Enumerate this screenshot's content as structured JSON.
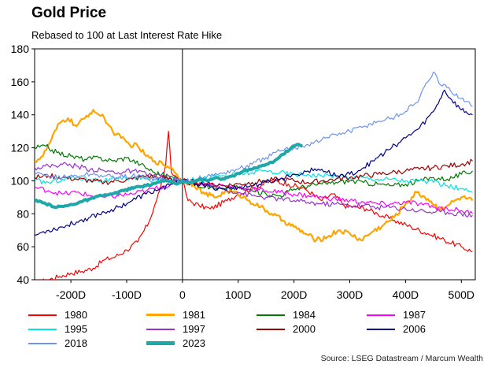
{
  "title": "Gold Price",
  "subtitle": "Rebased to 100 at Last Interest Rate Hike",
  "source": "Source: LSEG Datastream / Marcum Wealth",
  "chart_data": {
    "type": "line",
    "title": "Gold Price",
    "subtitle": "Rebased to 100 at Last Interest Rate Hike",
    "xlabel": "",
    "ylabel": "",
    "xlim": [
      -265,
      525
    ],
    "ylim": [
      40,
      180
    ],
    "yticks": [
      40,
      60,
      80,
      100,
      120,
      140,
      160,
      180
    ],
    "xticks": [
      -200,
      -100,
      0,
      100,
      200,
      300,
      400,
      500
    ],
    "xtick_labels": [
      "-200D",
      "-100D",
      "0",
      "100D",
      "200D",
      "300D",
      "400D",
      "500D"
    ],
    "vline_x": 0,
    "legend_position": "bottom",
    "series": [
      {
        "name": "1980",
        "color": "#ff0000",
        "width": 1.2,
        "x": [
          -265,
          -240,
          -220,
          -200,
          -180,
          -160,
          -140,
          -120,
          -100,
          -80,
          -60,
          -50,
          -40,
          -30,
          -25,
          -20,
          -10,
          0,
          10,
          30,
          50,
          80,
          100,
          130,
          160,
          190,
          220,
          250,
          270,
          290,
          310,
          330,
          350,
          380,
          410,
          440,
          470,
          500,
          520
        ],
        "y": [
          38,
          40,
          42,
          44,
          45,
          47,
          52,
          54,
          58,
          63,
          75,
          85,
          95,
          110,
          130,
          105,
          102,
          100,
          88,
          85,
          83,
          88,
          92,
          96,
          100,
          98,
          95,
          88,
          92,
          85,
          84,
          83,
          80,
          76,
          72,
          68,
          64,
          60,
          57
        ]
      },
      {
        "name": "1981",
        "color": "#ffa500",
        "width": 2.2,
        "x": [
          -265,
          -250,
          -235,
          -220,
          -205,
          -190,
          -175,
          -160,
          -150,
          -140,
          -125,
          -110,
          -95,
          -80,
          -65,
          -50,
          -35,
          -20,
          -10,
          0,
          20,
          40,
          60,
          80,
          100,
          120,
          140,
          160,
          180,
          200,
          220,
          240,
          260,
          280,
          300,
          320,
          340,
          360,
          380,
          400,
          420,
          440,
          460,
          480,
          500,
          520
        ],
        "y": [
          112,
          115,
          125,
          135,
          138,
          133,
          138,
          143,
          140,
          138,
          130,
          126,
          122,
          121,
          115,
          112,
          110,
          108,
          104,
          100,
          98,
          92,
          90,
          94,
          92,
          88,
          84,
          80,
          76,
          72,
          68,
          64,
          66,
          70,
          68,
          64,
          69,
          73,
          78,
          86,
          93,
          89,
          83,
          86,
          90,
          88
        ]
      },
      {
        "name": "1984",
        "color": "#007a00",
        "width": 1.2,
        "x": [
          -265,
          -245,
          -225,
          -200,
          -175,
          -150,
          -125,
          -100,
          -75,
          -50,
          -25,
          0,
          25,
          50,
          75,
          100,
          125,
          150,
          175,
          200,
          225,
          250,
          275,
          300,
          325,
          350,
          375,
          400,
          425,
          450,
          475,
          500,
          520
        ],
        "y": [
          120,
          121,
          117,
          115,
          113,
          114,
          112,
          114,
          110,
          105,
          103,
          100,
          98,
          96,
          95,
          96,
          94,
          92,
          91,
          95,
          97,
          98,
          99,
          100,
          99,
          98,
          97,
          98,
          100,
          102,
          101,
          104,
          106
        ]
      },
      {
        "name": "1987",
        "color": "#ff00ff",
        "width": 1.2,
        "x": [
          -265,
          -240,
          -215,
          -190,
          -165,
          -140,
          -115,
          -90,
          -65,
          -40,
          -20,
          0,
          25,
          50,
          75,
          100,
          125,
          150,
          175,
          200,
          225,
          250,
          275,
          300,
          325,
          350,
          375,
          400,
          425,
          450,
          475,
          500,
          520
        ],
        "y": [
          96,
          94,
          92,
          93,
          91,
          90,
          91,
          92,
          94,
          96,
          98,
          100,
          99,
          98,
          97,
          96,
          95,
          94,
          93,
          92,
          91,
          90,
          89,
          88,
          87,
          86,
          86,
          87,
          86,
          84,
          83,
          82,
          80
        ]
      },
      {
        "name": "1995",
        "color": "#00e5e5",
        "width": 1.2,
        "x": [
          -265,
          -240,
          -215,
          -190,
          -165,
          -140,
          -115,
          -90,
          -65,
          -40,
          -20,
          0,
          25,
          50,
          75,
          100,
          125,
          150,
          175,
          200,
          225,
          250,
          275,
          300,
          325,
          350,
          375,
          400,
          425,
          450,
          475,
          500,
          520
        ],
        "y": [
          100,
          99,
          101,
          102,
          101,
          100,
          101,
          102,
          101,
          100,
          101,
          100,
          101,
          102,
          103,
          104,
          105,
          106,
          105,
          104,
          104,
          103,
          103,
          102,
          102,
          101,
          101,
          100,
          100,
          99,
          97,
          95,
          93
        ]
      },
      {
        "name": "1997",
        "color": "#9933cc",
        "width": 1.2,
        "x": [
          -265,
          -240,
          -215,
          -190,
          -165,
          -140,
          -115,
          -90,
          -65,
          -40,
          -20,
          0,
          25,
          50,
          75,
          100,
          125,
          150,
          175,
          200,
          225,
          250,
          275,
          300,
          325,
          350,
          375,
          400,
          425,
          450,
          475,
          500,
          520
        ],
        "y": [
          108,
          109,
          110,
          109,
          107,
          106,
          105,
          106,
          104,
          103,
          101,
          100,
          99,
          97,
          95,
          93,
          91,
          90,
          89,
          88,
          87,
          86,
          86,
          85,
          85,
          84,
          84,
          83,
          82,
          81,
          81,
          80,
          79
        ]
      },
      {
        "name": "2000",
        "color": "#990000",
        "width": 1.2,
        "x": [
          -265,
          -240,
          -215,
          -190,
          -165,
          -140,
          -115,
          -90,
          -65,
          -40,
          -20,
          0,
          25,
          50,
          75,
          100,
          125,
          150,
          175,
          200,
          225,
          250,
          275,
          300,
          325,
          350,
          375,
          400,
          425,
          450,
          475,
          500,
          520
        ],
        "y": [
          102,
          103,
          102,
          101,
          100,
          99,
          100,
          101,
          103,
          102,
          101,
          100,
          99,
          98,
          97,
          98,
          99,
          100,
          101,
          100,
          99,
          100,
          101,
          102,
          103,
          104,
          105,
          106,
          107,
          108,
          109,
          110,
          112
        ]
      },
      {
        "name": "2006",
        "color": "#00008b",
        "width": 1.2,
        "x": [
          -265,
          -240,
          -215,
          -190,
          -165,
          -140,
          -115,
          -90,
          -65,
          -40,
          -20,
          0,
          25,
          50,
          75,
          100,
          125,
          150,
          175,
          200,
          225,
          250,
          275,
          300,
          325,
          350,
          375,
          400,
          425,
          450,
          470,
          480,
          500,
          520
        ],
        "y": [
          67,
          70,
          72,
          75,
          78,
          81,
          84,
          88,
          92,
          95,
          98,
          100,
          98,
          96,
          95,
          96,
          97,
          99,
          101,
          104,
          106,
          107,
          103,
          104,
          108,
          114,
          120,
          126,
          132,
          142,
          155,
          150,
          143,
          140
        ]
      },
      {
        "name": "2018",
        "color": "#6f94f0",
        "width": 1.2,
        "x": [
          -265,
          -240,
          -215,
          -190,
          -165,
          -140,
          -115,
          -90,
          -65,
          -40,
          -20,
          0,
          25,
          50,
          75,
          100,
          125,
          150,
          175,
          200,
          225,
          250,
          275,
          300,
          325,
          350,
          375,
          400,
          425,
          440,
          450,
          460,
          480,
          500,
          520
        ],
        "y": [
          104,
          103,
          102,
          103,
          104,
          103,
          102,
          103,
          102,
          101,
          100,
          100,
          101,
          103,
          105,
          107,
          110,
          114,
          118,
          120,
          122,
          125,
          128,
          130,
          133,
          136,
          138,
          142,
          150,
          160,
          166,
          159,
          155,
          150,
          145
        ]
      },
      {
        "name": "2023",
        "color": "#20a8a8",
        "width": 4,
        "x": [
          -265,
          -245,
          -225,
          -205,
          -185,
          -165,
          -145,
          -125,
          -105,
          -85,
          -65,
          -45,
          -25,
          -10,
          0,
          15,
          30,
          45,
          60,
          75,
          90,
          105,
          120,
          135,
          150,
          165,
          180,
          195,
          205,
          215
        ],
        "y": [
          88,
          86,
          84,
          85,
          87,
          89,
          91,
          92,
          94,
          96,
          97,
          99,
          100,
          98,
          100,
          99,
          101,
          100,
          102,
          101,
          103,
          105,
          107,
          108,
          110,
          112,
          116,
          120,
          122,
          121
        ]
      }
    ]
  },
  "legend": [
    {
      "label": "1980",
      "color": "#ff0000",
      "width": 2
    },
    {
      "label": "1981",
      "color": "#ffa500",
      "width": 3
    },
    {
      "label": "1984",
      "color": "#007a00",
      "width": 2
    },
    {
      "label": "1987",
      "color": "#ff00ff",
      "width": 2
    },
    {
      "label": "1995",
      "color": "#00e5e5",
      "width": 2
    },
    {
      "label": "1997",
      "color": "#9933cc",
      "width": 2
    },
    {
      "label": "2000",
      "color": "#990000",
      "width": 2
    },
    {
      "label": "2006",
      "color": "#00008b",
      "width": 2
    },
    {
      "label": "2018",
      "color": "#6f94f0",
      "width": 2
    },
    {
      "label": "2023",
      "color": "#20a8a8",
      "width": 5
    }
  ]
}
